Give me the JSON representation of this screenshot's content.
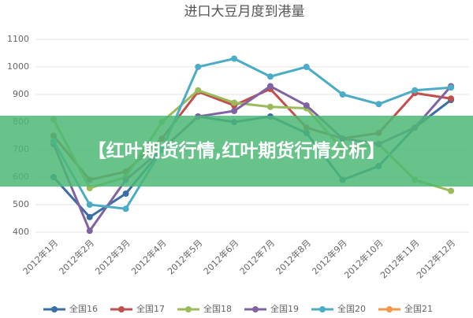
{
  "chart_data": {
    "type": "line",
    "title": "进口大豆月度到港量",
    "categories": [
      "2012年1月",
      "2012年2月",
      "2012年3月",
      "2012年4月",
      "2012年5月",
      "2012年6月",
      "2012年7月",
      "2012年8月",
      "2012年9月",
      "2012年10月",
      "2012年11月",
      "2012年12月"
    ],
    "series": [
      {
        "name": "全国16",
        "color": "#3a6ea5",
        "values": [
          600,
          455,
          540,
          700,
          820,
          800,
          820,
          760,
          590,
          640,
          780,
          880
        ]
      },
      {
        "name": "全国17",
        "color": "#c0504d",
        "values": [
          750,
          590,
          620,
          740,
          910,
          860,
          920,
          780,
          740,
          760,
          905,
          885
        ]
      },
      {
        "name": "全国18",
        "color": "#9bbb59",
        "values": [
          810,
          560,
          600,
          800,
          915,
          870,
          855,
          850,
          700,
          720,
          590,
          550
        ]
      },
      {
        "name": "全国19",
        "color": "#8064a2",
        "values": [
          720,
          405,
          590,
          700,
          820,
          840,
          930,
          860,
          740,
          720,
          780,
          930
        ]
      },
      {
        "name": "全国20",
        "color": "#4bacc6",
        "values": [
          730,
          500,
          485,
          700,
          1000,
          1030,
          965,
          1000,
          900,
          865,
          915,
          925
        ]
      },
      {
        "name": "全国21",
        "color": "#f79646",
        "values": [
          null,
          null,
          null,
          null,
          null,
          null,
          null,
          null,
          null,
          null,
          null,
          null
        ]
      }
    ],
    "ylim": [
      400,
      1100
    ],
    "yticks": [
      400,
      500,
      600,
      700,
      800,
      900,
      1000,
      1100
    ],
    "grid": true
  },
  "banner": {
    "text": "【红叶期货行情,红叶期货行情分析】"
  }
}
